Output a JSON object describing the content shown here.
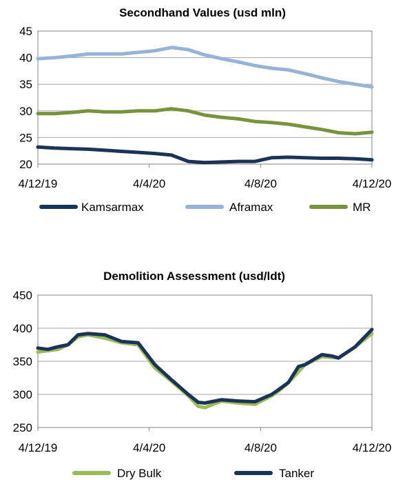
{
  "chart_data": [
    {
      "type": "line",
      "title": "Secondhand Values (usd mln)",
      "xlabel": "",
      "ylabel": "",
      "ylim": [
        20,
        45
      ],
      "yticks": [
        "20",
        "25",
        "30",
        "35",
        "40",
        "45"
      ],
      "xticks": [
        "4/12/19",
        "4/4/20",
        "4/8/20",
        "4/12/20"
      ],
      "grid": true,
      "legend_position": "bottom",
      "series": [
        {
          "name": "Kamsarmax",
          "color": "#1a3457",
          "x": [
            0,
            0.05,
            0.1,
            0.15,
            0.2,
            0.25,
            0.3,
            0.35,
            0.4,
            0.45,
            0.5,
            0.55,
            0.6,
            0.65,
            0.7,
            0.75,
            0.8,
            0.85,
            0.9,
            0.95,
            1.0
          ],
          "values": [
            23.2,
            23.0,
            22.9,
            22.8,
            22.6,
            22.4,
            22.2,
            22.0,
            21.7,
            20.5,
            20.3,
            20.4,
            20.5,
            20.5,
            21.2,
            21.3,
            21.2,
            21.1,
            21.1,
            21.0,
            20.8
          ]
        },
        {
          "name": "Aframax",
          "color": "#95b3d7",
          "x": [
            0,
            0.05,
            0.1,
            0.15,
            0.2,
            0.25,
            0.3,
            0.35,
            0.4,
            0.45,
            0.5,
            0.55,
            0.6,
            0.65,
            0.7,
            0.75,
            0.8,
            0.85,
            0.9,
            0.95,
            1.0
          ],
          "values": [
            39.8,
            40.0,
            40.3,
            40.7,
            40.7,
            40.7,
            41.0,
            41.3,
            41.9,
            41.5,
            40.5,
            39.8,
            39.2,
            38.5,
            38.0,
            37.7,
            37.0,
            36.2,
            35.5,
            35.0,
            34.5
          ]
        },
        {
          "name": "MR",
          "color": "#77933c",
          "x": [
            0,
            0.05,
            0.1,
            0.15,
            0.2,
            0.25,
            0.3,
            0.35,
            0.4,
            0.45,
            0.5,
            0.55,
            0.6,
            0.65,
            0.7,
            0.75,
            0.8,
            0.85,
            0.9,
            0.95,
            1.0
          ],
          "values": [
            29.5,
            29.5,
            29.7,
            30.0,
            29.8,
            29.8,
            30.0,
            30.0,
            30.4,
            30.0,
            29.2,
            28.8,
            28.5,
            28.0,
            27.8,
            27.5,
            27.0,
            26.5,
            25.9,
            25.7,
            26.0
          ]
        }
      ]
    },
    {
      "type": "line",
      "title": "Demolition Assessment (usd/ldt)",
      "xlabel": "",
      "ylabel": "",
      "ylim": [
        250,
        450
      ],
      "yticks": [
        "250",
        "300",
        "350",
        "400",
        "450"
      ],
      "xticks": [
        "4/12/19",
        "4/4/20",
        "4/8/20",
        "4/12/20"
      ],
      "grid": true,
      "legend_position": "bottom",
      "series": [
        {
          "name": "Dry Bulk",
          "color": "#9bbb59",
          "x": [
            0,
            0.03,
            0.06,
            0.09,
            0.12,
            0.15,
            0.2,
            0.25,
            0.3,
            0.35,
            0.4,
            0.45,
            0.48,
            0.5,
            0.55,
            0.6,
            0.65,
            0.7,
            0.72,
            0.75,
            0.8,
            0.85,
            0.9,
            0.95,
            1.0
          ],
          "values": [
            364,
            366,
            368,
            375,
            387,
            390,
            385,
            378,
            375,
            340,
            320,
            298,
            282,
            280,
            290,
            287,
            285,
            298,
            305,
            318,
            345,
            357,
            355,
            372,
            392
          ]
        },
        {
          "name": "Tanker",
          "color": "#1a3457",
          "x": [
            0,
            0.03,
            0.06,
            0.09,
            0.12,
            0.15,
            0.2,
            0.25,
            0.3,
            0.35,
            0.4,
            0.45,
            0.48,
            0.5,
            0.55,
            0.6,
            0.65,
            0.7,
            0.72,
            0.75,
            0.78,
            0.8,
            0.85,
            0.88,
            0.9,
            0.95,
            1.0
          ],
          "values": [
            370,
            368,
            372,
            375,
            390,
            392,
            390,
            380,
            378,
            345,
            322,
            300,
            288,
            287,
            292,
            290,
            289,
            300,
            307,
            318,
            342,
            345,
            360,
            358,
            355,
            372,
            398
          ]
        }
      ]
    }
  ]
}
